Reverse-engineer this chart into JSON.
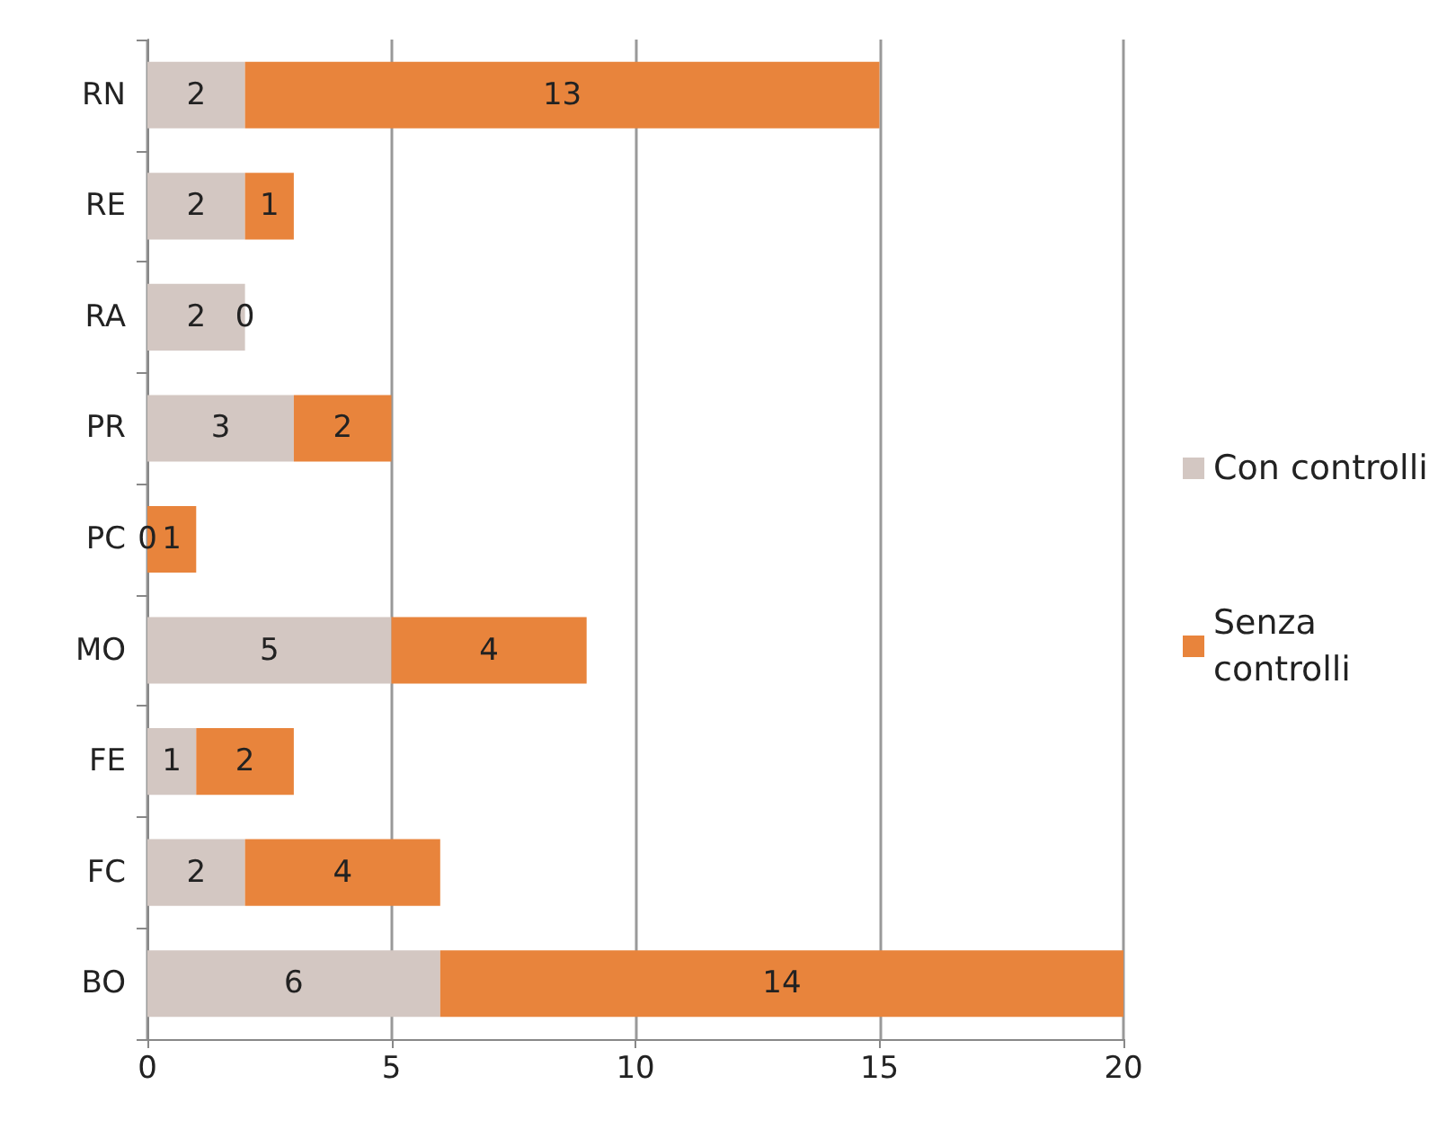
{
  "chart_data": {
    "type": "bar",
    "orientation": "horizontal",
    "stacked": true,
    "categories": [
      "RN",
      "RE",
      "RA",
      "PR",
      "PC",
      "MO",
      "FE",
      "FC",
      "BO"
    ],
    "series": [
      {
        "name": "Con controlli",
        "color": "#d3c7c2",
        "values": [
          2,
          2,
          2,
          3,
          0,
          5,
          1,
          2,
          6
        ]
      },
      {
        "name": "Senza controlli",
        "color": "#e8843c",
        "values": [
          13,
          1,
          0,
          2,
          1,
          4,
          2,
          4,
          14
        ]
      }
    ],
    "xlim": [
      0,
      20
    ],
    "xticks": [
      0,
      5,
      10,
      15,
      20
    ],
    "grid": "x",
    "legend": "right",
    "data_labels": true
  }
}
